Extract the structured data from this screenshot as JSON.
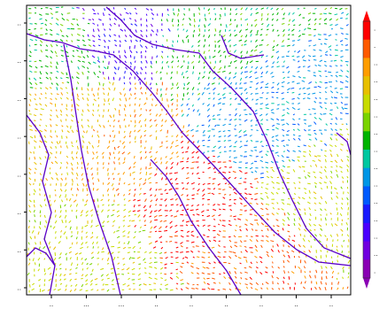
{
  "chart_data": {
    "type": "scatter",
    "title": "",
    "xlabel": "",
    "ylabel": "",
    "x_ticks": [
      "..",
      "...",
      "...",
      "..",
      "..",
      "..",
      "..",
      "..",
      ".."
    ],
    "y_ticks": [
      "..",
      "..",
      "..",
      "..",
      "..",
      "..",
      "..",
      ".."
    ],
    "colorbar_ticks": [
      ".",
      ".",
      "..",
      "..",
      "..",
      "..",
      "..",
      "..",
      "..",
      "..",
      "..",
      "..",
      "..",
      "..",
      "."
    ],
    "colormap": [
      "#ff0000",
      "#ff5a00",
      "#ff9d00",
      "#e8c000",
      "#c8dc00",
      "#7ad400",
      "#00b400",
      "#00c8a0",
      "#0096e6",
      "#005aff",
      "#1a1aff",
      "#4b00ff",
      "#7000e0",
      "#8a00b4"
    ],
    "region_color_index": {
      "north": 11,
      "north_west": 6,
      "north_east": 6,
      "west": 3,
      "center": 2,
      "east": 8,
      "central_south": 0,
      "south_west": 4,
      "south": 1,
      "south_east": 4
    },
    "boundary_color": "#5a00c8"
  }
}
